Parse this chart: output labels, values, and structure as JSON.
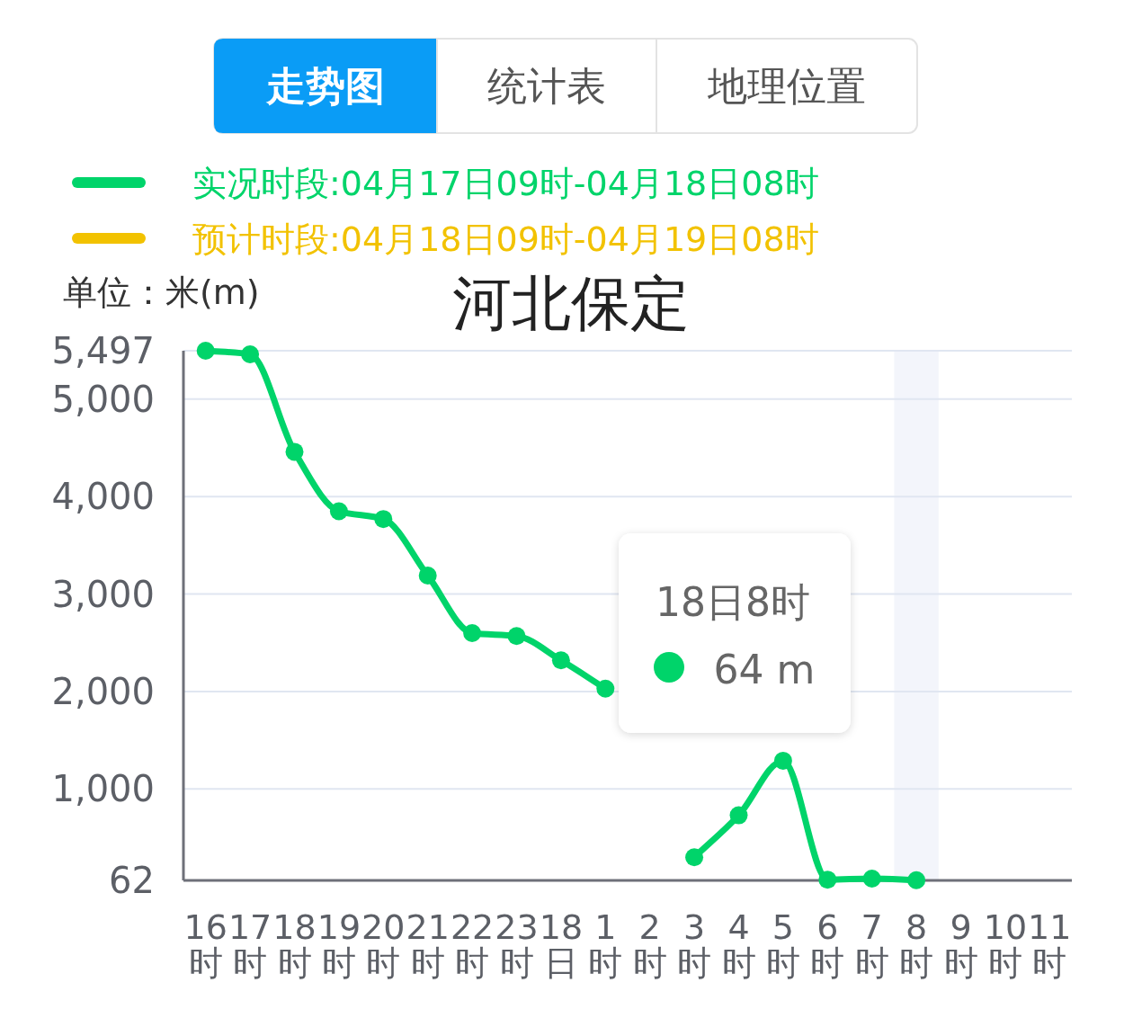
{
  "chart_data": {
    "type": "line",
    "title": "河北保定",
    "ylabel": "单位：米(m)",
    "categories": [
      "16时",
      "17时",
      "18时",
      "19时",
      "20时",
      "21时",
      "22时",
      "23时",
      "18日",
      "1时",
      "2时",
      "3时",
      "4时",
      "5时",
      "6时",
      "7时",
      "8时",
      "9时",
      "10时",
      "11时"
    ],
    "series": [
      {
        "name": "实况时段:04月17日09时-04月18日08时",
        "color": "#00d46a",
        "values": [
          5497,
          5460,
          4460,
          3850,
          3770,
          3190,
          2600,
          2570,
          2320,
          2030,
          null,
          300,
          730,
          1290,
          70,
          80,
          64,
          null,
          null,
          null
        ]
      },
      {
        "name": "预计时段:04月18日09时-04月19日08时",
        "color": "#f2c200",
        "values": [
          null,
          null,
          null,
          null,
          null,
          null,
          null,
          null,
          null,
          null,
          null,
          null,
          null,
          null,
          null,
          null,
          null,
          null,
          null,
          null
        ]
      }
    ],
    "ylim": [
      62,
      5497
    ],
    "yticks": [
      62,
      {
        "value": 1000,
        "label": "1,000"
      },
      {
        "value": 2000,
        "label": "2,000"
      },
      {
        "value": 3000,
        "label": "3,000"
      },
      {
        "value": 4000,
        "label": "4,000"
      },
      {
        "value": 5000,
        "label": "5,000"
      },
      {
        "value": 5497,
        "label": "5,497"
      }
    ],
    "grid": "y",
    "legend": "top",
    "marker": "circle",
    "bands": [
      {
        "axis": "x",
        "from": "8时",
        "to": "8时",
        "color": "#f3f5fb"
      }
    ],
    "annotations": [
      "走势图",
      "统计表",
      "地理位置",
      "18日8时",
      "64 m"
    ]
  }
}
